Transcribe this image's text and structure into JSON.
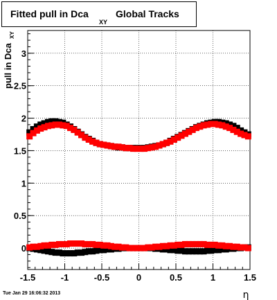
{
  "title": {
    "main": "Fitted pull in Dca",
    "subscript": "XY",
    "suffix": "Global Tracks"
  },
  "timestamp": "Tue Jan 29 16:06:32 2013",
  "colors": {
    "series_black": "#000000",
    "series_red": "#ff0000",
    "grid": "#000000"
  },
  "chart_data": {
    "type": "scatter",
    "title": "Fitted pull in Dca XY   Global Tracks",
    "xlabel": "η",
    "ylabel": "pull in Dca XY",
    "xlim": [
      -1.5,
      1.5
    ],
    "ylim": [
      -0.33,
      3.35
    ],
    "grid": true,
    "x_ticks": [
      "-1.5",
      "-1",
      "-0.5",
      "0",
      "0.5",
      "1",
      "1.5"
    ],
    "y_ticks": [
      "0",
      "0.5",
      "1",
      "1.5",
      "2",
      "2.5",
      "3"
    ],
    "series": [
      {
        "color": "#000000",
        "x": [
          -1.475,
          -1.425,
          -1.375,
          -1.325,
          -1.275,
          -1.225,
          -1.175,
          -1.125,
          -1.075,
          -1.025,
          -0.975,
          -0.925,
          -0.875,
          -0.825,
          -0.775,
          -0.725,
          -0.675,
          -0.625,
          -0.575,
          -0.525,
          -0.475,
          -0.425,
          -0.375,
          -0.325,
          -0.275,
          -0.225,
          -0.175,
          -0.125,
          -0.075,
          -0.025,
          0.025,
          0.075,
          0.125,
          0.175,
          0.225,
          0.275,
          0.325,
          0.375,
          0.425,
          0.475,
          0.525,
          0.575,
          0.625,
          0.675,
          0.725,
          0.775,
          0.825,
          0.875,
          0.925,
          0.975,
          1.025,
          1.075,
          1.125,
          1.175,
          1.225,
          1.275,
          1.325,
          1.375,
          1.425,
          1.475
        ],
        "y": [
          1.78,
          1.83,
          1.87,
          1.9,
          1.92,
          1.94,
          1.95,
          1.95,
          1.94,
          1.93,
          1.9,
          1.87,
          1.83,
          1.79,
          1.75,
          1.71,
          1.68,
          1.65,
          1.62,
          1.6,
          1.59,
          1.58,
          1.57,
          1.56,
          1.55,
          1.55,
          1.54,
          1.54,
          1.54,
          1.54,
          1.54,
          1.54,
          1.55,
          1.56,
          1.57,
          1.58,
          1.6,
          1.62,
          1.65,
          1.68,
          1.71,
          1.74,
          1.77,
          1.8,
          1.83,
          1.86,
          1.88,
          1.9,
          1.92,
          1.93,
          1.94,
          1.94,
          1.93,
          1.92,
          1.9,
          1.88,
          1.85,
          1.81,
          1.78,
          1.75
        ]
      },
      {
        "color": "#ff0000",
        "x": [
          -1.475,
          -1.425,
          -1.375,
          -1.325,
          -1.275,
          -1.225,
          -1.175,
          -1.125,
          -1.075,
          -1.025,
          -0.975,
          -0.925,
          -0.875,
          -0.825,
          -0.775,
          -0.725,
          -0.675,
          -0.625,
          -0.575,
          -0.525,
          -0.475,
          -0.425,
          -0.375,
          -0.325,
          -0.275,
          -0.225,
          -0.175,
          -0.125,
          -0.075,
          -0.025,
          0.025,
          0.075,
          0.125,
          0.175,
          0.225,
          0.275,
          0.325,
          0.375,
          0.425,
          0.475,
          0.525,
          0.575,
          0.625,
          0.675,
          0.725,
          0.775,
          0.825,
          0.875,
          0.925,
          0.975,
          1.025,
          1.075,
          1.125,
          1.175,
          1.225,
          1.275,
          1.325,
          1.375,
          1.425,
          1.475
        ],
        "y": [
          1.72,
          1.77,
          1.81,
          1.84,
          1.86,
          1.88,
          1.89,
          1.9,
          1.9,
          1.89,
          1.88,
          1.85,
          1.82,
          1.78,
          1.74,
          1.7,
          1.67,
          1.64,
          1.62,
          1.6,
          1.59,
          1.58,
          1.57,
          1.56,
          1.56,
          1.55,
          1.54,
          1.54,
          1.53,
          1.53,
          1.53,
          1.53,
          1.54,
          1.55,
          1.56,
          1.58,
          1.6,
          1.62,
          1.64,
          1.67,
          1.7,
          1.73,
          1.76,
          1.79,
          1.82,
          1.85,
          1.87,
          1.89,
          1.9,
          1.91,
          1.91,
          1.9,
          1.89,
          1.87,
          1.85,
          1.82,
          1.79,
          1.76,
          1.74,
          1.72
        ]
      },
      {
        "color": "#000000",
        "x": [
          -1.475,
          -1.425,
          -1.375,
          -1.325,
          -1.275,
          -1.225,
          -1.175,
          -1.125,
          -1.075,
          -1.025,
          -0.975,
          -0.925,
          -0.875,
          -0.825,
          -0.775,
          -0.725,
          -0.675,
          -0.625,
          -0.575,
          -0.525,
          -0.475,
          -0.425,
          -0.375,
          -0.325,
          -0.275,
          -0.225,
          -0.175,
          -0.125,
          -0.075,
          -0.025,
          0.025,
          0.075,
          0.125,
          0.175,
          0.225,
          0.275,
          0.325,
          0.375,
          0.425,
          0.475,
          0.525,
          0.575,
          0.625,
          0.675,
          0.725,
          0.775,
          0.825,
          0.875,
          0.925,
          0.975,
          1.025,
          1.075,
          1.125,
          1.175,
          1.225,
          1.275,
          1.325,
          1.375,
          1.425,
          1.475
        ],
        "y": [
          0.0,
          -0.01,
          -0.02,
          -0.03,
          -0.04,
          -0.05,
          -0.06,
          -0.07,
          -0.07,
          -0.08,
          -0.08,
          -0.08,
          -0.08,
          -0.07,
          -0.07,
          -0.06,
          -0.05,
          -0.05,
          -0.04,
          -0.03,
          -0.03,
          -0.02,
          -0.02,
          -0.01,
          -0.01,
          0.0,
          0.0,
          0.0,
          0.0,
          0.0,
          0.0,
          0.0,
          0.0,
          0.0,
          -0.01,
          -0.01,
          -0.02,
          -0.02,
          -0.03,
          -0.03,
          -0.04,
          -0.04,
          -0.05,
          -0.05,
          -0.05,
          -0.05,
          -0.05,
          -0.05,
          -0.04,
          -0.04,
          -0.03,
          -0.03,
          -0.02,
          -0.02,
          -0.01,
          -0.01,
          0.0,
          0.0,
          0.01,
          0.01
        ]
      },
      {
        "color": "#ff0000",
        "x": [
          -1.475,
          -1.425,
          -1.375,
          -1.325,
          -1.275,
          -1.225,
          -1.175,
          -1.125,
          -1.075,
          -1.025,
          -0.975,
          -0.925,
          -0.875,
          -0.825,
          -0.775,
          -0.725,
          -0.675,
          -0.625,
          -0.575,
          -0.525,
          -0.475,
          -0.425,
          -0.375,
          -0.325,
          -0.275,
          -0.225,
          -0.175,
          -0.125,
          -0.075,
          -0.025,
          0.025,
          0.075,
          0.125,
          0.175,
          0.225,
          0.275,
          0.325,
          0.375,
          0.425,
          0.475,
          0.525,
          0.575,
          0.625,
          0.675,
          0.725,
          0.775,
          0.825,
          0.875,
          0.925,
          0.975,
          1.025,
          1.075,
          1.125,
          1.175,
          1.225,
          1.275,
          1.325,
          1.375,
          1.425,
          1.475
        ],
        "y": [
          0.01,
          0.02,
          0.02,
          0.03,
          0.04,
          0.04,
          0.05,
          0.05,
          0.06,
          0.06,
          0.06,
          0.07,
          0.07,
          0.07,
          0.07,
          0.06,
          0.06,
          0.06,
          0.05,
          0.05,
          0.04,
          0.04,
          0.03,
          0.02,
          0.02,
          0.01,
          0.01,
          0.0,
          0.0,
          0.0,
          0.0,
          0.0,
          0.01,
          0.01,
          0.02,
          0.02,
          0.03,
          0.03,
          0.04,
          0.04,
          0.05,
          0.05,
          0.06,
          0.06,
          0.06,
          0.06,
          0.06,
          0.06,
          0.05,
          0.05,
          0.05,
          0.04,
          0.04,
          0.03,
          0.03,
          0.02,
          0.02,
          0.01,
          0.01,
          0.0
        ]
      }
    ]
  }
}
